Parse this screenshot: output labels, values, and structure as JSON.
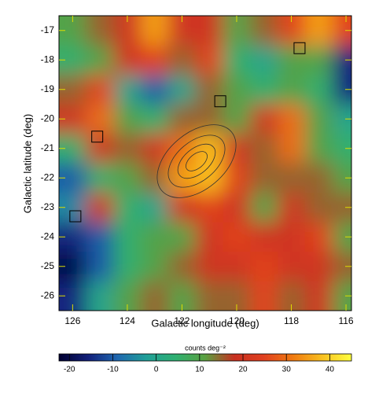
{
  "chart_data": {
    "type": "heatmap",
    "xlabel": "Galactic longitude (deg)",
    "ylabel": "Galactic latitude (deg)",
    "x": [
      126,
      125,
      124,
      123,
      122,
      121,
      120,
      119,
      118,
      117,
      116
    ],
    "y": [
      -17,
      -18,
      -19,
      -20,
      -21,
      -22,
      -23,
      -24,
      -25,
      -26
    ],
    "z": [
      [
        10,
        15,
        20,
        35,
        20,
        20,
        10,
        15,
        25,
        35,
        25
      ],
      [
        5,
        10,
        20,
        25,
        15,
        25,
        5,
        0,
        10,
        10,
        -15
      ],
      [
        15,
        25,
        0,
        -10,
        0,
        15,
        10,
        5,
        10,
        5,
        -15
      ],
      [
        20,
        30,
        10,
        5,
        15,
        15,
        10,
        20,
        30,
        10,
        0
      ],
      [
        5,
        20,
        15,
        20,
        30,
        38,
        20,
        15,
        30,
        10,
        5
      ],
      [
        -10,
        5,
        10,
        15,
        35,
        38,
        25,
        15,
        15,
        15,
        10
      ],
      [
        -5,
        20,
        5,
        0,
        20,
        25,
        20,
        10,
        20,
        15,
        15
      ],
      [
        -15,
        -10,
        5,
        10,
        10,
        20,
        25,
        20,
        20,
        25,
        10
      ],
      [
        -20,
        -10,
        5,
        10,
        15,
        20,
        20,
        25,
        20,
        20,
        15
      ],
      [
        -15,
        0,
        10,
        15,
        10,
        15,
        15,
        25,
        15,
        20,
        10
      ]
    ],
    "xlim": [
      126.5,
      115.8
    ],
    "ylim": [
      -26.5,
      -16.5
    ],
    "xticks": [
      126,
      124,
      122,
      120,
      118,
      116
    ],
    "yticks": [
      -17,
      -18,
      -19,
      -20,
      -21,
      -22,
      -23,
      -24,
      -25,
      -26
    ],
    "markers": {
      "x": [
        117.7,
        120.6,
        125.1,
        125.9
      ],
      "y": [
        -17.6,
        -19.4,
        -20.6,
        -23.3
      ]
    },
    "colorbar": {
      "label": "counts deg⁻²",
      "clim": [
        -22.4,
        45
      ],
      "ticks": [
        -20,
        -10,
        0,
        10,
        20,
        30,
        40
      ]
    },
    "colorscale": [
      "#000030",
      "#12207a",
      "#1f68b0",
      "#20a098",
      "#2fb070",
      "#5aa040",
      "#c83020",
      "#e04020",
      "#f07a10",
      "#f8c020",
      "#ffff40"
    ]
  }
}
